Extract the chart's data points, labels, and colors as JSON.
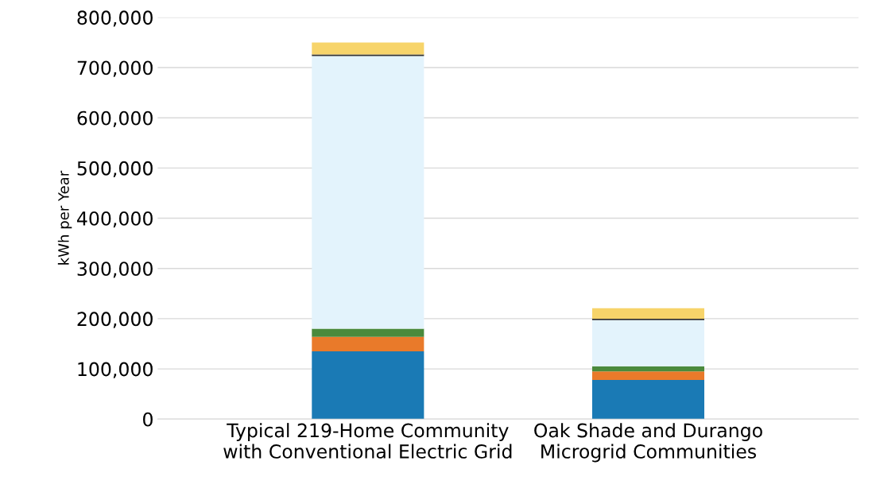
{
  "chart_data": {
    "type": "bar",
    "stacked": true,
    "ylabel": "kWh per Year",
    "categories": [
      "Typical 219-Home Community\nwith Conventional Electric Grid",
      "Oak Shade and Durango\nMicrogrid Communities"
    ],
    "series": [
      {
        "color": "#1a7ab5",
        "values": [
          135000,
          78000
        ]
      },
      {
        "color": "#e97a2a",
        "values": [
          29000,
          17000
        ]
      },
      {
        "color": "#4a8a3c",
        "values": [
          16000,
          10000
        ]
      },
      {
        "color": "#e3f3fc",
        "values": [
          543000,
          92000
        ]
      },
      {
        "color": "#333333",
        "values": [
          3000,
          3000
        ]
      },
      {
        "color": "#f7d46a",
        "values": [
          24000,
          21000
        ]
      }
    ],
    "ylim": [
      0,
      800000
    ],
    "yticks": [
      {
        "value": 0,
        "label": "0"
      },
      {
        "value": 100000,
        "label": "100,000"
      },
      {
        "value": 200000,
        "label": "200,000"
      },
      {
        "value": 300000,
        "label": "300,000"
      },
      {
        "value": 400000,
        "label": "400,000"
      },
      {
        "value": 500000,
        "label": "500,000"
      },
      {
        "value": 600000,
        "label": "600,000"
      },
      {
        "value": 700000,
        "label": "700,000"
      },
      {
        "value": 800000,
        "label": "800,000"
      }
    ],
    "grid": "y"
  }
}
